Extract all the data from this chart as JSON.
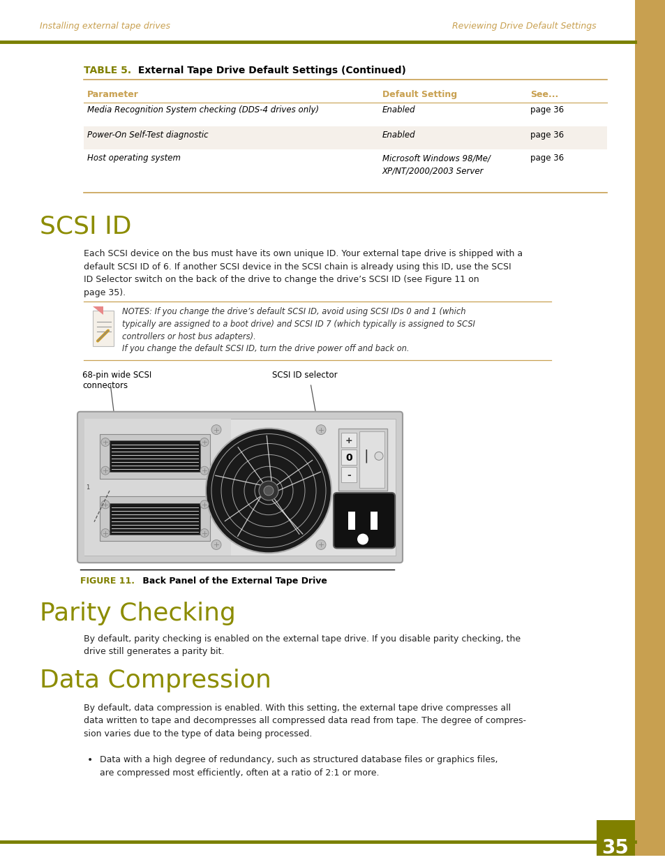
{
  "header_left": "Installing external tape drives",
  "header_right": "Reviewing Drive Default Settings",
  "header_line_color": "#7A8000",
  "header_text_color": "#C8A050",
  "table_title_prefix": "TABLE 5.",
  "table_title_rest": " External Tape Drive Default Settings (Continued)",
  "table_title_color": "#808000",
  "table_col_headers": [
    "Parameter",
    "Default Setting",
    "See..."
  ],
  "table_col_header_color": "#C8A050",
  "table_rows": [
    [
      "Media Recognition System checking (DDS-4 drives only)",
      "Enabled",
      "page 36"
    ],
    [
      "Power-On Self-Test diagnostic",
      "Enabled",
      "page 36"
    ],
    [
      "Host operating system",
      "Microsoft Windows 98/Me/\nXP/NT/2000/2003 Server",
      "page 36"
    ]
  ],
  "table_line_color": "#C8A050",
  "table_alt_row_color": "#F5F0EA",
  "section1_title": "SCSI ID",
  "section1_color": "#8C8C00",
  "section1_body": "Each SCSI device on the bus must have its own unique ID. Your external tape drive is shipped with a\ndefault SCSI ID of 6. If another SCSI device in the SCSI chain is already using this ID, use the SCSI\nID Selector switch on the back of the drive to change the drive’s SCSI ID (see Figure 11 on\npage 35).",
  "note_text": "NOTES: If you change the drive’s default SCSI ID, avoid using SCSI IDs 0 and 1 (which\ntypically are assigned to a boot drive) and SCSI ID 7 (which typically is assigned to SCSI\ncontrollers or host bus adapters).",
  "note_text2": "If you change the default SCSI ID, turn the drive power off and back on.",
  "label_left": "68-pin wide SCSI\nconnectors",
  "label_right": "SCSI ID selector",
  "figure_caption_prefix": "FIGURE 11.",
  "figure_caption_rest": " Back Panel of the External Tape Drive",
  "figure_caption_color": "#808000",
  "section2_title": "Parity Checking",
  "section2_color": "#8C8C00",
  "section2_body": "By default, parity checking is enabled on the external tape drive. If you disable parity checking, the\ndrive still generates a parity bit.",
  "section3_title": "Data Compression",
  "section3_color": "#8C8C00",
  "section3_body": "By default, data compression is enabled. With this setting, the external tape drive compresses all\ndata written to tape and decompresses all compressed data read from tape. The degree of compres-\nsion varies due to the type of data being processed.",
  "bullet_text": "Data with a high degree of redundancy, such as structured database files or graphics files,\nare compressed most efficiently, often at a ratio of 2:1 or more.",
  "page_number": "35",
  "page_num_bg": "#808000",
  "right_sidebar_color": "#C8A050",
  "bg_color": "#FFFFFF"
}
